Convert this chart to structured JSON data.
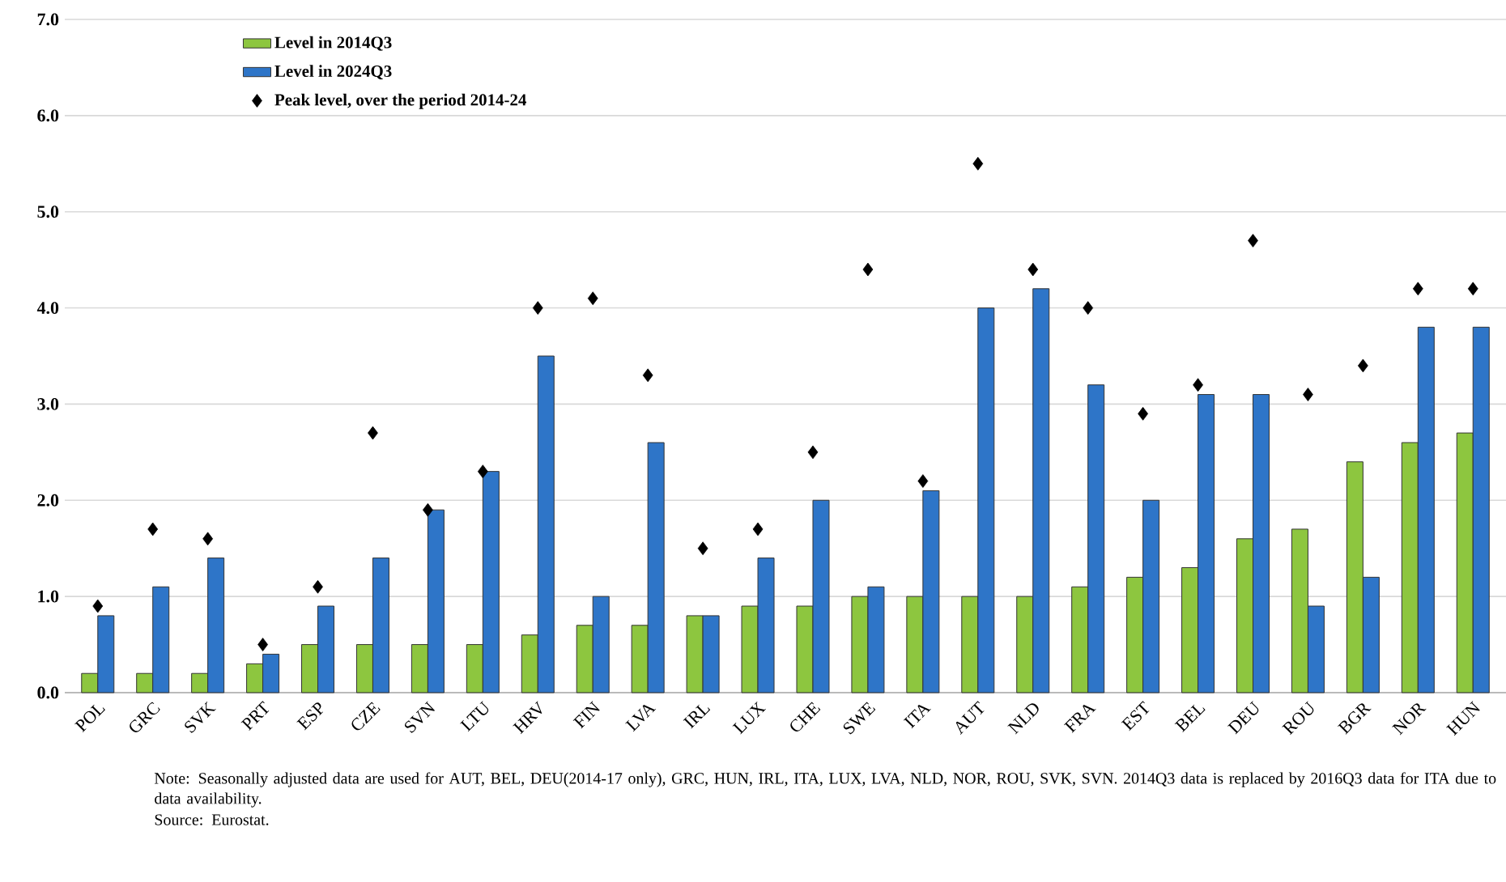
{
  "chart_data": {
    "type": "bar",
    "categories": [
      "POL",
      "GRC",
      "SVK",
      "PRT",
      "ESP",
      "CZE",
      "SVN",
      "LTU",
      "HRV",
      "FIN",
      "LVA",
      "IRL",
      "LUX",
      "CHE",
      "SWE",
      "ITA",
      "AUT",
      "NLD",
      "FRA",
      "EST",
      "BEL",
      "DEU",
      "ROU",
      "BGR",
      "NOR",
      "HUN"
    ],
    "series": [
      {
        "name": "Level in 2014Q3",
        "color": "#8dc63f",
        "values": [
          0.2,
          0.2,
          0.2,
          0.3,
          0.5,
          0.5,
          0.5,
          0.5,
          0.6,
          0.7,
          0.7,
          0.8,
          0.9,
          0.9,
          1.0,
          1.0,
          1.0,
          1.0,
          1.1,
          1.2,
          1.3,
          1.6,
          1.7,
          2.4,
          2.6,
          2.7
        ]
      },
      {
        "name": "Level in 2024Q3",
        "color": "#2e75c8",
        "values": [
          0.8,
          1.1,
          1.4,
          0.4,
          0.9,
          1.4,
          1.9,
          2.3,
          3.5,
          1.0,
          2.6,
          0.8,
          1.4,
          2.0,
          1.1,
          2.1,
          4.0,
          4.2,
          3.2,
          2.0,
          3.1,
          3.1,
          0.9,
          1.2,
          3.8,
          3.8
        ]
      },
      {
        "name": "Peak level, over the period 2014-24",
        "type": "scatter",
        "marker": "diamond",
        "color": "#000000",
        "x": [
          "POL",
          "GRC",
          "SVK",
          "PRT",
          "ESP",
          "CZE",
          "SVN",
          "LTU",
          "HRV",
          "FIN",
          "LVA",
          "IRL",
          "LUX",
          "CHE",
          "SWE",
          "ITA",
          "AUT",
          "NLD",
          "FRA",
          "EST",
          "BEL",
          "DEU",
          "ROU",
          "BGR",
          "NOR",
          "HUN"
        ],
        "values": [
          0.9,
          1.7,
          1.6,
          0.5,
          1.1,
          2.7,
          1.9,
          2.3,
          4.0,
          4.1,
          3.3,
          1.5,
          1.7,
          2.5,
          4.4,
          2.2,
          5.5,
          4.4,
          4.0,
          2.9,
          3.2,
          4.7,
          3.1,
          3.4,
          4.2,
          4.2
        ]
      }
    ],
    "ylim": [
      0,
      7
    ],
    "yticks": [
      {
        "value": 0,
        "label": "0.0"
      },
      {
        "value": 1,
        "label": "1.0"
      },
      {
        "value": 2,
        "label": "2.0"
      },
      {
        "value": 3,
        "label": "3.0"
      },
      {
        "value": 4,
        "label": "4.0"
      },
      {
        "value": 5,
        "label": "5.0"
      },
      {
        "value": 6,
        "label": "6.0"
      },
      {
        "value": 7,
        "label": "7.0"
      }
    ],
    "grid": "y",
    "legend": "top left",
    "annotations": [
      "Note: Seasonally adjusted data are used for AUT, BEL, DEU(2014-17 only), GRC, HUN, IRL, ITA, LUX, LVA, NLD, NOR, ROU, SVK, SVN. 2014Q3 data is replaced by 2016Q3 data for ITA due to data availability.",
      "Source: Eurostat."
    ]
  }
}
